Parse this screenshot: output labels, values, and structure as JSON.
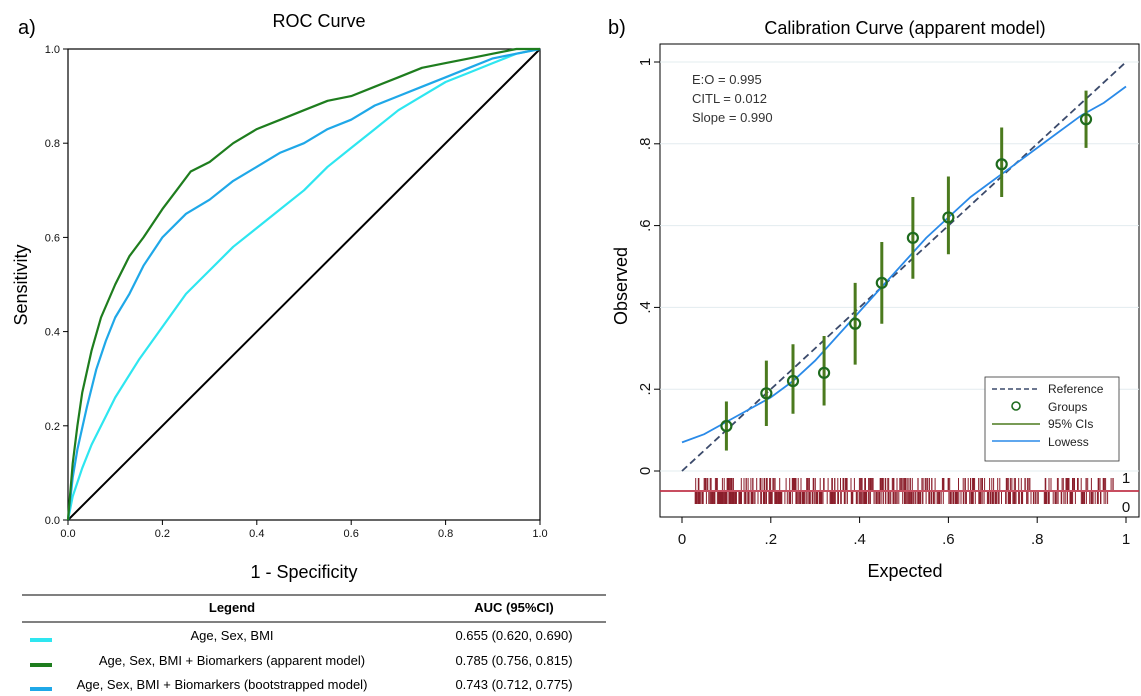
{
  "panels": {
    "a_label": "a)",
    "b_label": "b)"
  },
  "roc": {
    "title": "ROC Curve",
    "xlabel": "1 - Specificity",
    "ylabel": "Sensitivity",
    "xticks": [
      "0.0",
      "0.2",
      "0.4",
      "0.6",
      "0.8",
      "1.0"
    ],
    "yticks": [
      "0.0",
      "0.2",
      "0.4",
      "0.6",
      "0.8",
      "1.0"
    ]
  },
  "legend_table": {
    "col_legend": "Legend",
    "col_auc": "AUC (95%CI)",
    "rows": [
      {
        "label": "Age, Sex, BMI",
        "auc": "0.655 (0.620, 0.690)",
        "color": "#2ee6f0"
      },
      {
        "label": "Age, Sex, BMI + Biomarkers (apparent model)",
        "auc": "0.785 (0.756, 0.815)",
        "color": "#1e7d1e"
      },
      {
        "label": "Age, Sex, BMI + Biomarkers (bootstrapped model)",
        "auc": "0.743 (0.712, 0.775)",
        "color": "#1fa8e8"
      }
    ]
  },
  "calibration": {
    "title": "Calibration Curve (apparent model)",
    "xlabel": "Expected",
    "ylabel": "Observed",
    "xticks": [
      "0",
      ".2",
      ".4",
      ".6",
      ".8",
      "1"
    ],
    "yticks": [
      "0",
      ".2",
      ".4",
      ".6",
      ".8",
      "1"
    ],
    "stats": [
      "E:O = 0.995",
      "CITL = 0.012",
      "Slope = 0.990"
    ],
    "legend": [
      "Reference",
      "Groups",
      "95% CIs",
      "Lowess"
    ],
    "rug_labels": [
      "1",
      "0"
    ]
  },
  "chart_data": [
    {
      "type": "line",
      "title": "ROC Curve",
      "xlabel": "1 - Specificity",
      "ylabel": "Sensitivity",
      "xlim": [
        0,
        1
      ],
      "ylim": [
        0,
        1
      ],
      "series": [
        {
          "name": "Age, Sex, BMI",
          "color": "#2ee6f0",
          "x": [
            0,
            0.01,
            0.03,
            0.05,
            0.08,
            0.1,
            0.15,
            0.2,
            0.25,
            0.3,
            0.35,
            0.4,
            0.45,
            0.5,
            0.55,
            0.6,
            0.65,
            0.7,
            0.75,
            0.8,
            0.85,
            0.9,
            0.95,
            1.0
          ],
          "y": [
            0,
            0.05,
            0.11,
            0.16,
            0.22,
            0.26,
            0.34,
            0.41,
            0.48,
            0.53,
            0.58,
            0.62,
            0.66,
            0.7,
            0.75,
            0.79,
            0.83,
            0.87,
            0.9,
            0.93,
            0.95,
            0.97,
            0.99,
            1.0
          ]
        },
        {
          "name": "Age, Sex, BMI + Biomarkers (apparent model)",
          "color": "#1e7d1e",
          "x": [
            0,
            0.01,
            0.02,
            0.03,
            0.05,
            0.07,
            0.1,
            0.13,
            0.16,
            0.2,
            0.23,
            0.26,
            0.3,
            0.35,
            0.4,
            0.45,
            0.5,
            0.55,
            0.6,
            0.65,
            0.7,
            0.75,
            0.8,
            0.85,
            0.9,
            0.95,
            1.0
          ],
          "y": [
            0,
            0.12,
            0.2,
            0.27,
            0.36,
            0.43,
            0.5,
            0.56,
            0.6,
            0.66,
            0.7,
            0.74,
            0.76,
            0.8,
            0.83,
            0.85,
            0.87,
            0.89,
            0.9,
            0.92,
            0.94,
            0.96,
            0.97,
            0.98,
            0.99,
            1.0,
            1.0
          ]
        },
        {
          "name": "Age, Sex, BMI + Biomarkers (bootstrapped model)",
          "color": "#1fa8e8",
          "x": [
            0,
            0.01,
            0.02,
            0.04,
            0.06,
            0.08,
            0.1,
            0.13,
            0.16,
            0.2,
            0.25,
            0.3,
            0.35,
            0.4,
            0.45,
            0.5,
            0.55,
            0.6,
            0.65,
            0.7,
            0.75,
            0.8,
            0.85,
            0.9,
            0.95,
            1.0
          ],
          "y": [
            0,
            0.09,
            0.15,
            0.24,
            0.32,
            0.38,
            0.43,
            0.48,
            0.54,
            0.6,
            0.65,
            0.68,
            0.72,
            0.75,
            0.78,
            0.8,
            0.83,
            0.85,
            0.88,
            0.9,
            0.92,
            0.94,
            0.96,
            0.98,
            0.99,
            1.0
          ]
        },
        {
          "name": "",
          "color": "#000000",
          "x": [
            0,
            1
          ],
          "y": [
            0,
            1
          ]
        }
      ]
    },
    {
      "type": "scatter",
      "title": "Calibration Curve (apparent model)",
      "xlabel": "Expected",
      "ylabel": "Observed",
      "xlim": [
        0,
        1
      ],
      "ylim": [
        0,
        1
      ],
      "groups": {
        "x": [
          0.1,
          0.19,
          0.25,
          0.32,
          0.39,
          0.45,
          0.52,
          0.6,
          0.72,
          0.91
        ],
        "y": [
          0.11,
          0.19,
          0.22,
          0.24,
          0.36,
          0.46,
          0.57,
          0.62,
          0.75,
          0.86
        ],
        "ci_low": [
          0.05,
          0.11,
          0.14,
          0.16,
          0.26,
          0.36,
          0.47,
          0.53,
          0.67,
          0.79
        ],
        "ci_high": [
          0.17,
          0.27,
          0.31,
          0.33,
          0.46,
          0.56,
          0.67,
          0.72,
          0.84,
          0.93
        ]
      },
      "reference": {
        "x": [
          0,
          1
        ],
        "y": [
          0,
          1
        ]
      },
      "lowess": {
        "x": [
          0,
          0.05,
          0.1,
          0.15,
          0.2,
          0.25,
          0.3,
          0.35,
          0.4,
          0.45,
          0.5,
          0.55,
          0.6,
          0.65,
          0.7,
          0.75,
          0.8,
          0.85,
          0.9,
          0.95,
          1.0
        ],
        "y": [
          0.07,
          0.09,
          0.12,
          0.15,
          0.18,
          0.22,
          0.27,
          0.33,
          0.39,
          0.45,
          0.51,
          0.57,
          0.62,
          0.67,
          0.71,
          0.75,
          0.79,
          0.83,
          0.87,
          0.9,
          0.94
        ]
      },
      "stats": {
        "E:O": 0.995,
        "CITL": 0.012,
        "Slope": 0.99
      },
      "legend": [
        "Reference",
        "Groups",
        "95% CIs",
        "Lowess"
      ]
    }
  ]
}
